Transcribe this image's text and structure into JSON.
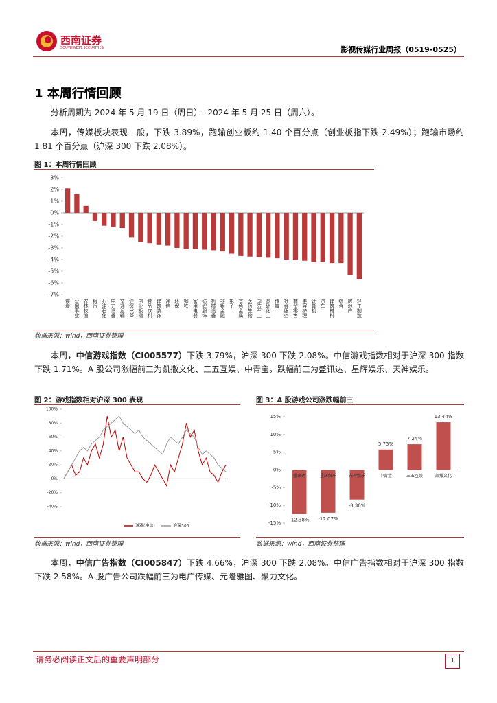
{
  "header": {
    "logo_cn": "西南证券",
    "logo_en": "SOUTHWEST SECURITIES",
    "report_title": "影视传媒行业周报（0519-0525）"
  },
  "section_title": "1 本周行情回顾",
  "paragraphs": [
    [
      "分析周期为 2024 年 5 月 19 日（周日）- 2024 年 5 月 25 日（周六）。"
    ],
    [
      "本周，传媒板块表现一般，下跌 3.89%，跑输创业板约 1.40 个百分点（创业板指下跌 2.49%）；跑输市场约 1.81 个百分点（沪深 300 下跌 2.08%）。"
    ],
    [
      "本周，",
      "中信游戏指数（CI005577）",
      "下跌 3.79%，沪深 300 下跌 2.08%。中信游戏指数相对于沪深 300 指数下跌 1.71%。A 股公司涨幅前三为凯撒文化、三五互娱、中青宝，跌幅前三为盛讯达、星辉娱乐、天神娱乐。"
    ],
    [
      "本周，",
      "中信广告指数（CI005847）",
      "下跌 4.66%，沪深 300 下跌 2.08%。中信广告指数相对于沪深 300 指数下跌 2.58%。A 股广告公司跌幅前三为电广传媒、元隆雅图、聚力文化。"
    ]
  ],
  "chart_data": [
    {
      "type": "bar",
      "title": "图 1：本周行情回顾",
      "source": "数据来源：wind，西南证券整理",
      "color": "#b83b3b",
      "categories": [
        "煤炭",
        "公用事业",
        "农林牧渔",
        "银行",
        "石油石化",
        "电力设备",
        "交通运输",
        "沪深300",
        "创业板指",
        "食品饮料",
        "建筑装饰",
        "通信",
        "环保",
        "钢铁",
        "家用电器",
        "纺织服饰",
        "机械设备",
        "非银金融",
        "电子",
        "有色金属",
        "医药生物",
        "国防军工",
        "基础化工",
        "传媒",
        "社会服务",
        "商贸零售",
        "美容护理",
        "计算机",
        "汽车",
        "建筑材料",
        "综合",
        "房地产",
        "轻工制造"
      ],
      "values": [
        2.1,
        1.6,
        0.6,
        -0.7,
        -1.1,
        -1.2,
        -1.3,
        -2.08,
        -2.49,
        -2.6,
        -2.75,
        -2.8,
        -3.0,
        -3.1,
        -3.1,
        -3.15,
        -3.2,
        -3.3,
        -3.5,
        -3.7,
        -3.75,
        -3.8,
        -3.85,
        -3.89,
        -4.0,
        -4.05,
        -4.1,
        -4.2,
        -4.2,
        -4.3,
        -4.3,
        -5.3,
        -5.7
      ],
      "ylim": [
        -7,
        3
      ],
      "yticks": [
        {
          "value": 3,
          "label": "3%"
        },
        {
          "value": 2,
          "label": "2%"
        },
        {
          "value": 1,
          "label": "1%"
        },
        {
          "value": 0,
          "label": "0%"
        },
        {
          "value": -1,
          "label": "-1%"
        },
        {
          "value": -2,
          "label": "-2%"
        },
        {
          "value": -3,
          "label": "-3%"
        },
        {
          "value": -4,
          "label": "-4%"
        },
        {
          "value": -5,
          "label": "-5%"
        },
        {
          "value": -6,
          "label": "-6%"
        },
        {
          "value": -7,
          "label": "-7%"
        }
      ]
    },
    {
      "type": "line",
      "title": "图 2：游戏指数相对沪深 300 表现",
      "source": "数据来源：wind，西南证券整理",
      "categories": [
        null,
        null,
        null,
        null,
        null,
        null,
        null,
        null,
        null,
        null,
        null,
        null,
        null,
        null,
        null,
        null,
        null,
        null,
        null,
        null,
        null,
        null,
        null,
        null,
        null,
        null,
        null,
        null,
        null,
        null,
        null,
        null,
        null,
        null,
        null,
        null,
        null,
        null,
        null,
        null,
        null,
        null
      ],
      "series": [
        {
          "name": "游戏(中信)",
          "color": "#c00000",
          "values": [
            0,
            10,
            20,
            5,
            10,
            30,
            20,
            40,
            50,
            30,
            50,
            90,
            60,
            70,
            40,
            60,
            30,
            20,
            10,
            10,
            0,
            -5,
            5,
            20,
            10,
            0,
            -10,
            20,
            10,
            30,
            50,
            80,
            60,
            70,
            40,
            20,
            30,
            10,
            5,
            -5,
            10,
            20
          ]
        },
        {
          "name": "沪深300",
          "color": "#999999",
          "values": [
            0,
            10,
            20,
            30,
            40,
            45,
            40,
            50,
            55,
            60,
            70,
            75,
            80,
            85,
            90,
            80,
            75,
            70,
            65,
            70,
            60,
            55,
            50,
            45,
            40,
            35,
            50,
            60,
            55,
            50,
            60,
            70,
            65,
            60,
            45,
            35,
            40,
            35,
            30,
            20,
            15,
            10
          ]
        }
      ],
      "ylim": [
        -40,
        100
      ],
      "yticks": [
        {
          "value": 100,
          "label": "100%"
        },
        {
          "value": 80,
          "label": "80%"
        },
        {
          "value": 60,
          "label": "60%"
        },
        {
          "value": 40,
          "label": "40%"
        },
        {
          "value": 20,
          "label": "20%"
        },
        {
          "value": 0,
          "label": "0%"
        },
        {
          "value": -20,
          "label": "-20%"
        },
        {
          "value": -40,
          "label": "-40%"
        }
      ]
    },
    {
      "type": "bar",
      "title": "图 3：A 股游戏公司涨跌幅前三",
      "source": "数据来源：wind，西南证券整理",
      "color": "#c0504d",
      "categories": [
        "盛讯达",
        "星辉娱乐",
        "天神娱乐",
        "中青宝",
        "三五互娱",
        "凯撒文化"
      ],
      "values": [
        -12.38,
        -12.07,
        -8.36,
        5.75,
        7.24,
        13.44
      ],
      "value_labels": [
        "-12.38%",
        "-12.07%",
        "-8.36%",
        "5.75%",
        "7.24%",
        "13.44%"
      ],
      "ylim": [
        -15,
        15
      ],
      "yticks": [
        {
          "value": 15,
          "label": "15%"
        },
        {
          "value": 10,
          "label": "10%"
        },
        {
          "value": 5,
          "label": "5%"
        },
        {
          "value": 0,
          "label": "0%"
        },
        {
          "value": -5,
          "label": "-5%"
        },
        {
          "value": -10,
          "label": "-10%"
        },
        {
          "value": -15,
          "label": "-15%"
        }
      ]
    }
  ],
  "footer": {
    "notice": "请务必阅读正文后的重要声明部分",
    "page": "1"
  }
}
